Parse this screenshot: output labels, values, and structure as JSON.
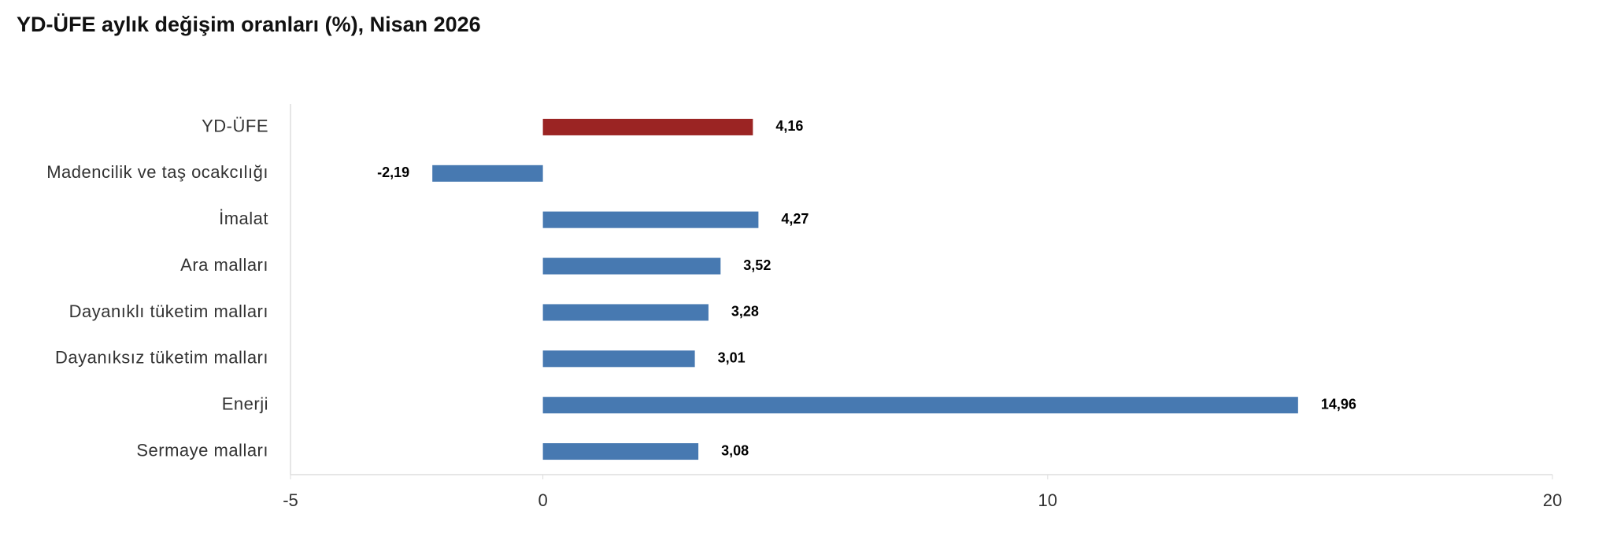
{
  "chart_data": {
    "type": "hbar",
    "title": "YD-ÜFE aylık değişim oranları (%), Nisan 2026",
    "categories": [
      "YD-ÜFE",
      "Madencilik ve taş ocakcılığı",
      "İmalat",
      "Ara malları",
      "Dayanıklı tüketim malları",
      "Dayanıksız tüketim malları",
      "Enerji",
      "Sermaye malları"
    ],
    "values": [
      4.16,
      -2.19,
      4.27,
      3.52,
      3.28,
      3.01,
      14.96,
      3.08
    ],
    "value_labels": [
      "4,16",
      "-2,19",
      "4,27",
      "3,52",
      "3,28",
      "3,01",
      "14,96",
      "3,08"
    ],
    "colors": [
      "#9b2423",
      "#4779b1",
      "#4779b1",
      "#4779b1",
      "#4779b1",
      "#4779b1",
      "#4779b1",
      "#4779b1"
    ],
    "xlim": [
      -5,
      20
    ],
    "xticks": [
      -5,
      0,
      10,
      20
    ],
    "grid": false
  }
}
